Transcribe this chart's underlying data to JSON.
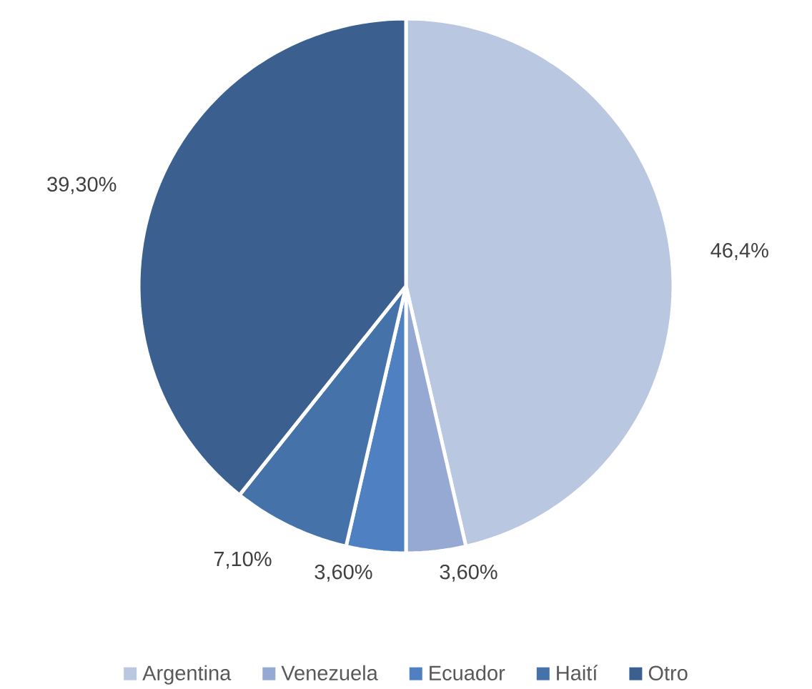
{
  "chart_data": {
    "type": "pie",
    "categories": [
      "Argentina",
      "Venezuela",
      "Ecuador",
      "Haití",
      "Otro"
    ],
    "values": [
      46.4,
      3.6,
      3.6,
      7.1,
      39.3
    ],
    "value_labels": [
      "46,4%",
      "3,60%",
      "3,60%",
      "7,10%",
      "39,30%"
    ],
    "colors": [
      "#b9c7e1",
      "#95a9d3",
      "#4f80c2",
      "#4573a9",
      "#3b5f8e"
    ],
    "legend": "bottom"
  }
}
